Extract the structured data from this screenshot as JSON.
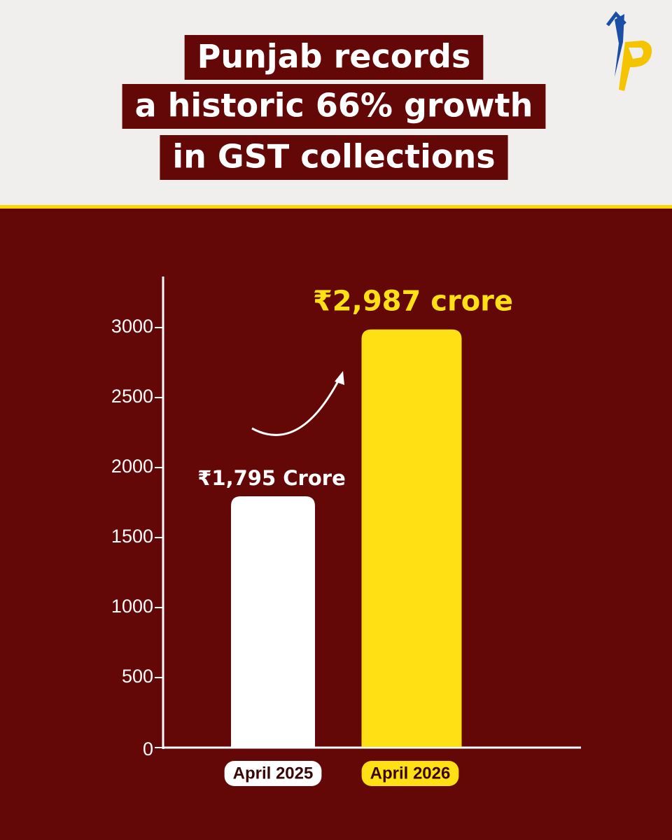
{
  "chart_data": {
    "type": "bar",
    "title": [
      "Punjab records",
      "a historic 66% growth",
      "in GST collections"
    ],
    "categories": [
      "April 2025",
      "April 2026"
    ],
    "values": [
      1795,
      2987
    ],
    "value_labels": [
      "₹1,795 Crore",
      "₹2,987 crore"
    ],
    "colors": [
      "#ffffff",
      "#ffe014"
    ],
    "ylim": [
      0,
      3365
    ],
    "yticks": [
      0,
      500,
      1000,
      1500,
      2000,
      2500,
      3000
    ]
  }
}
